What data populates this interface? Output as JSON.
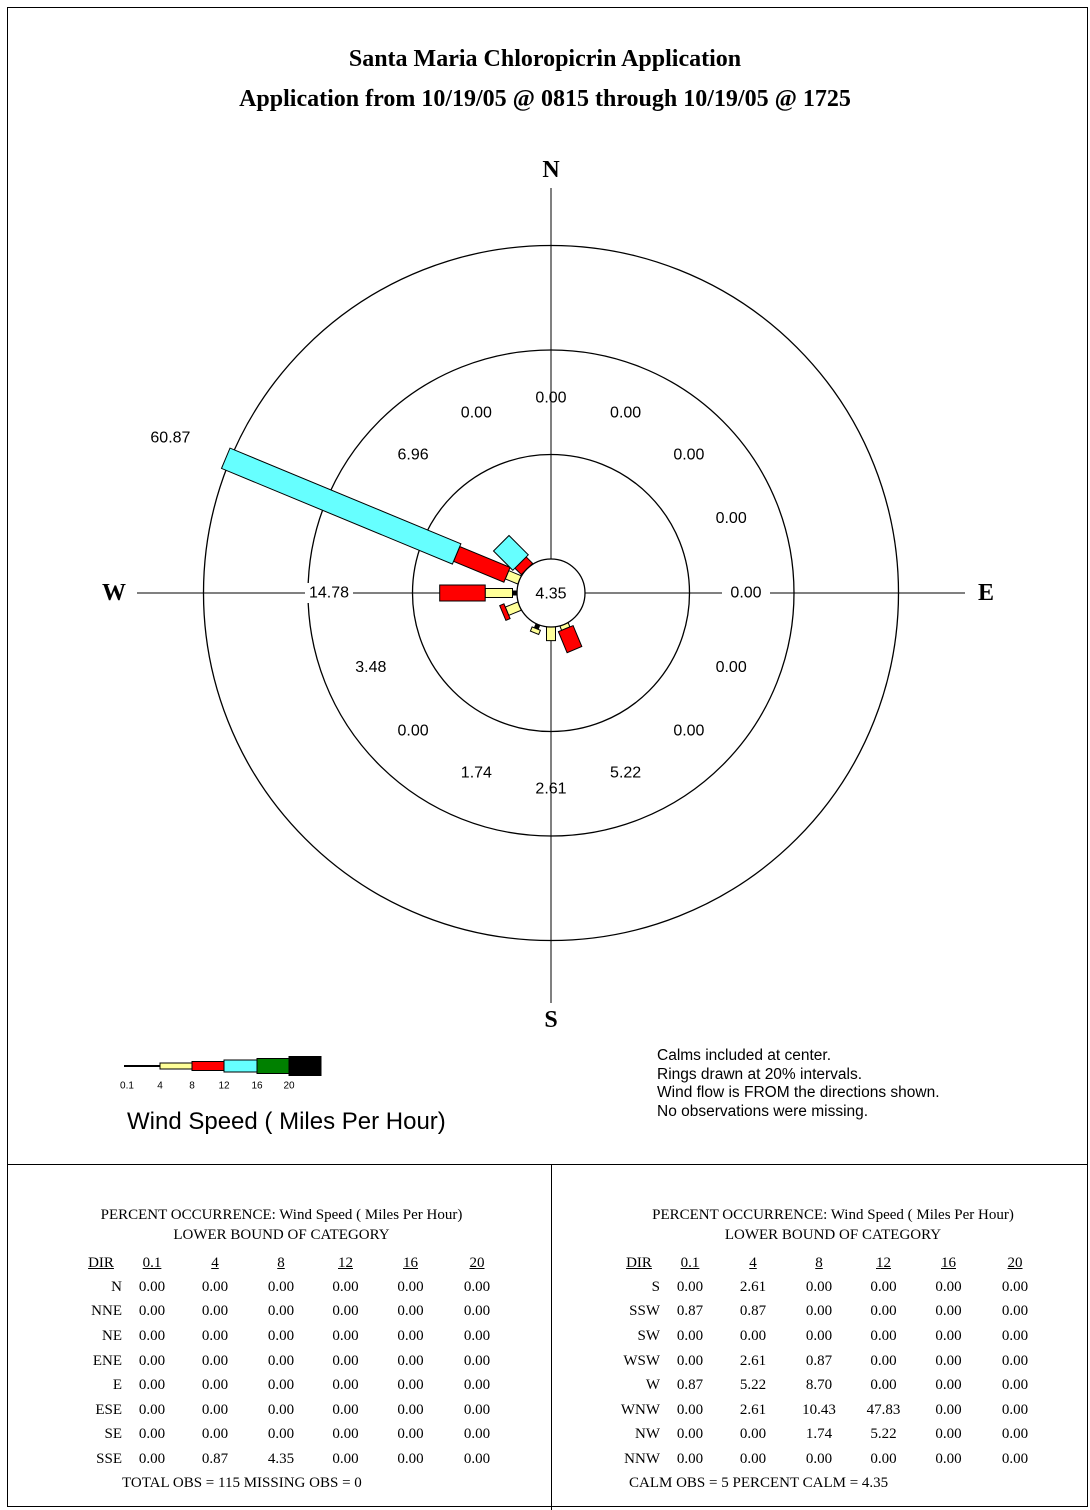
{
  "chart_data": {
    "type": "windrose",
    "title": "Santa Maria Chloropicrin Application",
    "subtitle": "Application from 10/19/05 @ 0815 through 10/19/05 @ 1725",
    "compass": {
      "n": "N",
      "e": "E",
      "s": "S",
      "w": "W"
    },
    "rings_percent": [
      20,
      40,
      60
    ],
    "calm_percent": 4.35,
    "calm_label": "4.35",
    "directions": [
      "N",
      "NNE",
      "NE",
      "ENE",
      "E",
      "ESE",
      "SE",
      "SSE",
      "S",
      "SSW",
      "SW",
      "WSW",
      "W",
      "WNW",
      "NW",
      "NNW"
    ],
    "direction_totals": [
      "0.00",
      "0.00",
      "0.00",
      "0.00",
      "0.00",
      "0.00",
      "0.00",
      "5.22",
      "2.61",
      "1.74",
      "0.00",
      "3.48",
      "14.78",
      "60.87",
      "6.96",
      "0.00"
    ],
    "speed_bins": [
      "0.1",
      "4",
      "8",
      "12",
      "16",
      "20"
    ],
    "bin_colors": [
      "#000000",
      "#ffff99",
      "#ff0000",
      "#66ffff",
      "#008000",
      "#000000"
    ],
    "frequencies": {
      "N": [
        0.0,
        0.0,
        0.0,
        0.0,
        0.0,
        0.0
      ],
      "NNE": [
        0.0,
        0.0,
        0.0,
        0.0,
        0.0,
        0.0
      ],
      "NE": [
        0.0,
        0.0,
        0.0,
        0.0,
        0.0,
        0.0
      ],
      "ENE": [
        0.0,
        0.0,
        0.0,
        0.0,
        0.0,
        0.0
      ],
      "E": [
        0.0,
        0.0,
        0.0,
        0.0,
        0.0,
        0.0
      ],
      "ESE": [
        0.0,
        0.0,
        0.0,
        0.0,
        0.0,
        0.0
      ],
      "SE": [
        0.0,
        0.0,
        0.0,
        0.0,
        0.0,
        0.0
      ],
      "SSE": [
        0.0,
        0.87,
        4.35,
        0.0,
        0.0,
        0.0
      ],
      "S": [
        0.0,
        2.61,
        0.0,
        0.0,
        0.0,
        0.0
      ],
      "SSW": [
        0.87,
        0.87,
        0.0,
        0.0,
        0.0,
        0.0
      ],
      "SW": [
        0.0,
        0.0,
        0.0,
        0.0,
        0.0,
        0.0
      ],
      "WSW": [
        0.0,
        2.61,
        0.87,
        0.0,
        0.0,
        0.0
      ],
      "W": [
        0.87,
        5.22,
        8.7,
        0.0,
        0.0,
        0.0
      ],
      "WNW": [
        0.0,
        2.61,
        10.43,
        47.83,
        0.0,
        0.0
      ],
      "NW": [
        0.0,
        0.0,
        1.74,
        5.22,
        0.0,
        0.0
      ],
      "NNW": [
        0.0,
        0.0,
        0.0,
        0.0,
        0.0,
        0.0
      ]
    }
  },
  "legend": {
    "title": "Wind Speed  ( Miles Per Hour)"
  },
  "notes": [
    "Calms included at center.",
    "Rings drawn at 20% intervals.",
    "Wind flow is FROM the directions shown.",
    "No observations were missing."
  ],
  "tables": {
    "heading": "PERCENT OCCURRENCE: Wind Speed  ( Miles Per Hour)",
    "subheading": "LOWER BOUND OF CATEGORY",
    "dir_header": "DIR",
    "left": {
      "rows": [
        [
          "N",
          "0.00",
          "0.00",
          "0.00",
          "0.00",
          "0.00",
          "0.00"
        ],
        [
          "NNE",
          "0.00",
          "0.00",
          "0.00",
          "0.00",
          "0.00",
          "0.00"
        ],
        [
          "NE",
          "0.00",
          "0.00",
          "0.00",
          "0.00",
          "0.00",
          "0.00"
        ],
        [
          "ENE",
          "0.00",
          "0.00",
          "0.00",
          "0.00",
          "0.00",
          "0.00"
        ],
        [
          "E",
          "0.00",
          "0.00",
          "0.00",
          "0.00",
          "0.00",
          "0.00"
        ],
        [
          "ESE",
          "0.00",
          "0.00",
          "0.00",
          "0.00",
          "0.00",
          "0.00"
        ],
        [
          "SE",
          "0.00",
          "0.00",
          "0.00",
          "0.00",
          "0.00",
          "0.00"
        ],
        [
          "SSE",
          "0.00",
          "0.87",
          "4.35",
          "0.00",
          "0.00",
          "0.00"
        ]
      ],
      "footer": "TOTAL OBS =  115   MISSING OBS =    0"
    },
    "right": {
      "rows": [
        [
          "S",
          "0.00",
          "2.61",
          "0.00",
          "0.00",
          "0.00",
          "0.00"
        ],
        [
          "SSW",
          "0.87",
          "0.87",
          "0.00",
          "0.00",
          "0.00",
          "0.00"
        ],
        [
          "SW",
          "0.00",
          "0.00",
          "0.00",
          "0.00",
          "0.00",
          "0.00"
        ],
        [
          "WSW",
          "0.00",
          "2.61",
          "0.87",
          "0.00",
          "0.00",
          "0.00"
        ],
        [
          "W",
          "0.87",
          "5.22",
          "8.70",
          "0.00",
          "0.00",
          "0.00"
        ],
        [
          "WNW",
          "0.00",
          "2.61",
          "10.43",
          "47.83",
          "0.00",
          "0.00"
        ],
        [
          "NW",
          "0.00",
          "0.00",
          "1.74",
          "5.22",
          "0.00",
          "0.00"
        ],
        [
          "NNW",
          "0.00",
          "0.00",
          "0.00",
          "0.00",
          "0.00",
          "0.00"
        ]
      ],
      "footer": "CALM OBS =    5   PERCENT CALM =  4.35"
    }
  }
}
